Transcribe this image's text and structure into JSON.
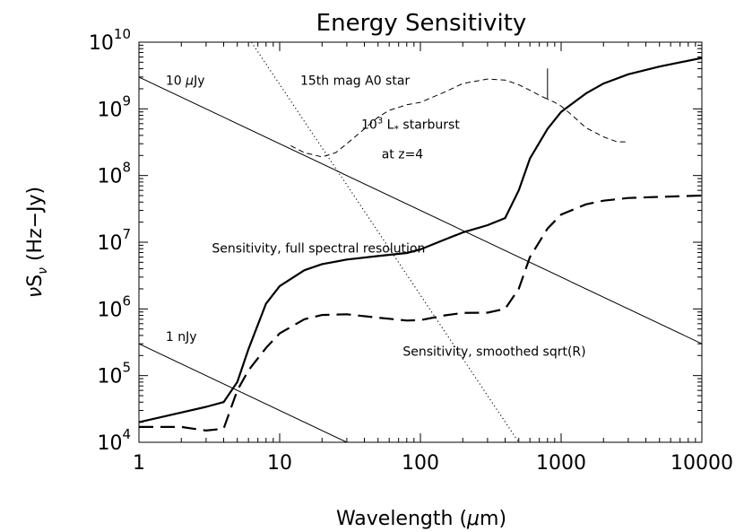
{
  "chart_data": {
    "type": "line",
    "title": "Energy Sensitivity",
    "xlabel": {
      "main": "Wavelength (",
      "greek": "μ",
      "unit": "m)"
    },
    "ylabel": {
      "nu": "ν",
      "S": "S",
      "sub": "ν",
      "unit": " (Hz−Jy)"
    },
    "x_scale": "log",
    "y_scale": "log",
    "xlim": [
      1,
      10000
    ],
    "ylim": [
      10000,
      10000000000
    ],
    "x_ticks": [
      {
        "value": 1,
        "label": "1"
      },
      {
        "value": 10,
        "label": "10"
      },
      {
        "value": 100,
        "label": "100"
      },
      {
        "value": 1000,
        "label": "1000"
      },
      {
        "value": 10000,
        "label": "10000"
      }
    ],
    "y_ticks": [
      {
        "value": 10000,
        "base": "10",
        "exp": "4"
      },
      {
        "value": 100000,
        "base": "10",
        "exp": "5"
      },
      {
        "value": 1000000,
        "base": "10",
        "exp": "6"
      },
      {
        "value": 10000000,
        "base": "10",
        "exp": "7"
      },
      {
        "value": 100000000,
        "base": "10",
        "exp": "8"
      },
      {
        "value": 1000000000,
        "base": "10",
        "exp": "9"
      },
      {
        "value": 10000000000,
        "base": "10",
        "exp": "10"
      }
    ],
    "series": [
      {
        "name": "Sensitivity, full spectral resolution",
        "style": "solid-thick",
        "x": [
          1,
          2,
          3,
          4,
          5,
          6,
          8,
          10,
          15,
          20,
          30,
          50,
          80,
          100,
          150,
          200,
          300,
          400,
          500,
          600,
          800,
          1000,
          1500,
          2000,
          3000,
          5000,
          10000
        ],
        "y": [
          20000,
          28000,
          34000,
          40000,
          80000,
          250000,
          1200000,
          2200000,
          3800000,
          4700000,
          5500000,
          6200000,
          6900000,
          7800000,
          11000000,
          14000000,
          18000000,
          23000000,
          60000000,
          180000000,
          500000000,
          900000000,
          1700000000,
          2400000000,
          3300000000,
          4300000000,
          5800000000
        ]
      },
      {
        "name": "Sensitivity, smoothed sqrt(R)",
        "style": "long-dash",
        "x": [
          1,
          2,
          3,
          4,
          5,
          6,
          8,
          10,
          15,
          20,
          30,
          50,
          80,
          100,
          150,
          200,
          300,
          400,
          500,
          600,
          800,
          1000,
          1500,
          2000,
          3000,
          5000,
          10000
        ],
        "y": [
          17000,
          17000,
          15000,
          16000,
          60000,
          120000,
          260000,
          430000,
          700000,
          810000,
          830000,
          740000,
          670000,
          680000,
          800000,
          870000,
          880000,
          1000000,
          2000000,
          6000000,
          16000000,
          26000000,
          37000000,
          42000000,
          46000000,
          48000000,
          50000000
        ]
      },
      {
        "name": "10^3 L* starburst at z=4",
        "style": "short-dash",
        "x": [
          12,
          15,
          20,
          25,
          30,
          40,
          50,
          60,
          80,
          100,
          150,
          200,
          300,
          400,
          500,
          600,
          700,
          800,
          800,
          800,
          900,
          1000,
          1200,
          1500,
          2000,
          2500,
          3000
        ],
        "y": [
          280000000,
          220000000,
          190000000,
          220000000,
          300000000,
          500000000,
          750000000,
          950000000,
          1150000000,
          1250000000,
          1800000000,
          2400000000,
          2800000000,
          2700000000,
          2300000000,
          1900000000,
          1600000000,
          1400000000,
          4000000000,
          1400000000,
          1250000000,
          1100000000,
          800000000,
          520000000,
          380000000,
          320000000,
          320000000
        ]
      },
      {
        "name": "15th mag A0 star",
        "style": "dotted",
        "x": [
          6.3,
          500
        ],
        "y": [
          10000000000,
          10000
        ]
      },
      {
        "name": "10 μJy",
        "style": "thin-solid",
        "x": [
          1,
          10000
        ],
        "y": [
          3000000000,
          300000
        ]
      },
      {
        "name": "1 nJy",
        "style": "thin-solid",
        "x": [
          1,
          30
        ],
        "y": [
          300000,
          10000
        ]
      }
    ],
    "annotations": [
      {
        "id": "ten-ujy",
        "text_a": "10 ",
        "greek": "μ",
        "text_b": "Jy",
        "x": 1.55,
        "y": 2300000000
      },
      {
        "id": "a0-star",
        "text": "15th mag A0 star",
        "x": 14,
        "y": 2300000000
      },
      {
        "id": "starburst-1",
        "base": "10",
        "exp": "3",
        "text_a": " L",
        "sub": "*",
        "text_b": " starburst",
        "x": 38,
        "y": 500000000
      },
      {
        "id": "starburst-2",
        "text": "at z=4",
        "x": 53,
        "y": 180000000
      },
      {
        "id": "full-res",
        "text": "Sensitivity, full spectral resolution",
        "x": 3.3,
        "y": 7000000
      },
      {
        "id": "smoothed",
        "text": "Sensitivity, smoothed sqrt(R)",
        "x": 75,
        "y": 200000
      },
      {
        "id": "one-njy",
        "text": "1 nJy",
        "x": 1.55,
        "y": 330000
      }
    ]
  }
}
